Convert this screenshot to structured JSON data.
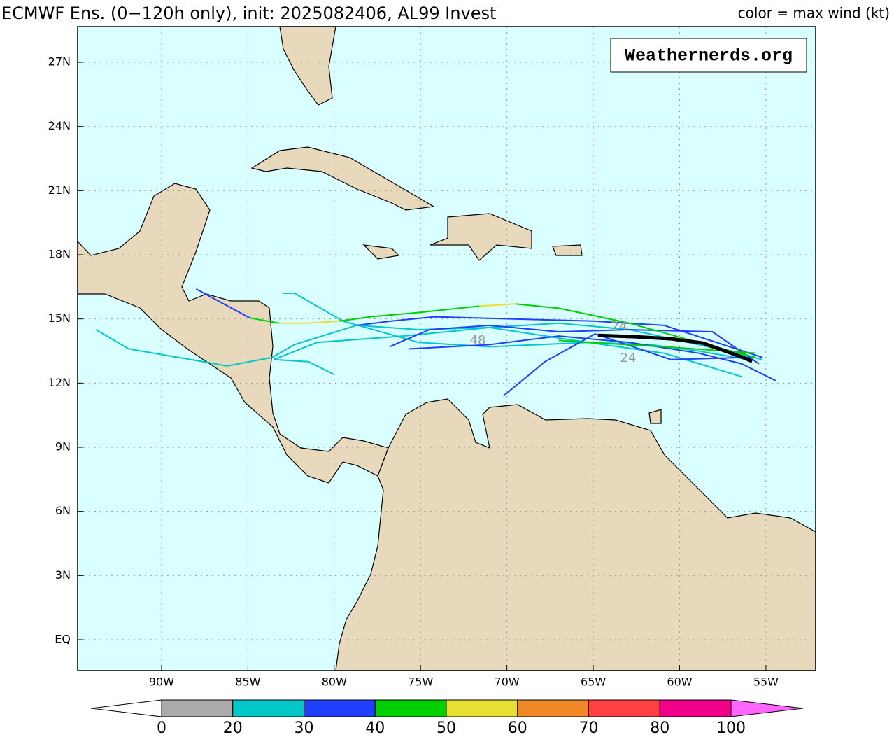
{
  "map": {
    "title": "ECMWF Ens. (0−120h only), init: 2025082406, AL99 Invest",
    "legend_title": "color = max wind (kt)",
    "watermark": "Weathernerds.org",
    "lonlim": [
      -94.86,
      -52.12
    ],
    "latlim": [
      -1.44,
      28.67
    ],
    "xticks": [
      {
        "value": -90,
        "label": "90W"
      },
      {
        "value": -85,
        "label": "85W"
      },
      {
        "value": -80,
        "label": "80W"
      },
      {
        "value": -75,
        "label": "75W"
      },
      {
        "value": -70,
        "label": "70W"
      },
      {
        "value": -65,
        "label": "65W"
      },
      {
        "value": -60,
        "label": "60W"
      },
      {
        "value": -55,
        "label": "55W"
      }
    ],
    "yticks": [
      {
        "value": 0,
        "label": "EQ"
      },
      {
        "value": 3,
        "label": "3N"
      },
      {
        "value": 6,
        "label": "6N"
      },
      {
        "value": 9,
        "label": "9N"
      },
      {
        "value": 12,
        "label": "12N"
      },
      {
        "value": 15,
        "label": "15N"
      },
      {
        "value": 18,
        "label": "18N"
      },
      {
        "value": 21,
        "label": "21N"
      },
      {
        "value": 24,
        "label": "24N"
      },
      {
        "value": 27,
        "label": "27N"
      }
    ],
    "tracks": [
      {
        "color": "#00c8c8",
        "lon": [
          -56.0,
          -58.9,
          -61.7,
          -65.3,
          -71.0,
          -75.1,
          -79.5,
          -82.3,
          -83.0
        ],
        "lat": [
          13.1,
          13.5,
          13.8,
          13.9,
          13.7,
          13.9,
          14.9,
          16.2,
          16.2
        ]
      },
      {
        "color": "#00c8c8",
        "lon": [
          -55.2,
          -58.9,
          -62.9,
          -67.0,
          -71.0,
          -75.1,
          -78.7,
          -80.3,
          -82.3,
          -83.6,
          -86.2,
          -87.6,
          -91.9,
          -93.8
        ],
        "lat": [
          13.1,
          13.8,
          14.5,
          14.8,
          14.6,
          14.5,
          14.7,
          14.3,
          13.8,
          13.2,
          12.8,
          13.0,
          13.6,
          14.5
        ]
      },
      {
        "color": "#00c8c8",
        "lon": [
          -56.4,
          -60.9,
          -65.3,
          -71.0,
          -76.0,
          -81.0,
          -83.5,
          -81.5,
          -80.0
        ],
        "lat": [
          12.3,
          13.4,
          13.9,
          14.6,
          14.2,
          13.9,
          13.1,
          13.0,
          12.4
        ]
      },
      {
        "color": "#2040ff",
        "lon": [
          -55.4,
          -58.1,
          -62.9,
          -67.0,
          -71.0,
          -74.5,
          -76.8
        ],
        "lat": [
          12.9,
          14.4,
          14.5,
          14.4,
          14.7,
          14.5,
          13.7
        ]
      },
      {
        "color": "#2040ff",
        "lon": [
          -55.2,
          -60.9,
          -65.0,
          -69.8,
          -74.2,
          -76.7,
          -78.7
        ],
        "lat": [
          13.2,
          14.7,
          14.9,
          15.0,
          15.1,
          14.9,
          14.7
        ]
      },
      {
        "color": "#2040ff",
        "lon": [
          -54.4,
          -56.4,
          -58.9,
          -62.9,
          -67.0,
          -71.0,
          -75.7
        ],
        "lat": [
          12.1,
          12.9,
          13.4,
          13.9,
          14.2,
          13.8,
          13.6
        ]
      },
      {
        "color": "#2040ff",
        "lon": [
          -56.0,
          -60.5,
          -64.9,
          -67.8,
          -70.2
        ],
        "lat": [
          13.2,
          13.1,
          14.3,
          13.0,
          11.4
        ]
      },
      {
        "color": "#00d000",
        "lon": [
          -55.6,
          -58.9,
          -62.9,
          -67.0,
          -69.5
        ],
        "lat": [
          13.2,
          13.9,
          14.8,
          15.5,
          15.7
        ]
      },
      {
        "color": "#e8e030",
        "lon": [
          -69.5,
          -71.6
        ],
        "lat": [
          15.7,
          15.6
        ]
      },
      {
        "color": "#00d000",
        "lon": [
          -71.6,
          -75.1,
          -77.9,
          -79.7
        ],
        "lat": [
          15.6,
          15.3,
          15.1,
          14.9
        ]
      },
      {
        "color": "#e8e030",
        "lon": [
          -79.7,
          -81.5,
          -83.2
        ],
        "lat": [
          14.9,
          14.8,
          14.8
        ]
      },
      {
        "color": "#00d000",
        "lon": [
          -83.2,
          -84.9
        ],
        "lat": [
          14.8,
          15.05
        ]
      },
      {
        "color": "#2040ff",
        "lon": [
          -84.9,
          -86.4,
          -88.0
        ],
        "lat": [
          15.05,
          15.7,
          16.4
        ]
      },
      {
        "color": "#00d000",
        "lon": [
          -55.6,
          -60.9,
          -65.3,
          -67.0
        ],
        "lat": [
          13.4,
          13.7,
          13.9,
          14.0
        ]
      },
      {
        "color": "#000000",
        "lon": [
          -55.8,
          -56.4,
          -58.65,
          -60.47,
          -62.7,
          -64.73
        ],
        "lat": [
          13.02,
          13.22,
          13.87,
          14.07,
          14.17,
          14.23
        ]
      }
    ],
    "annotations": [
      "24",
      "24",
      "48"
    ],
    "colorbar": {
      "bounds": [
        0,
        20,
        30,
        40,
        50,
        60,
        70,
        80,
        100
      ],
      "colors": [
        "#aaaaaa",
        "#00c8c8",
        "#2040ff",
        "#00d000",
        "#e8e030",
        "#f08828",
        "#ff4040",
        "#f00088"
      ],
      "under": "#ffffff",
      "over": "#ff66ff"
    }
  }
}
